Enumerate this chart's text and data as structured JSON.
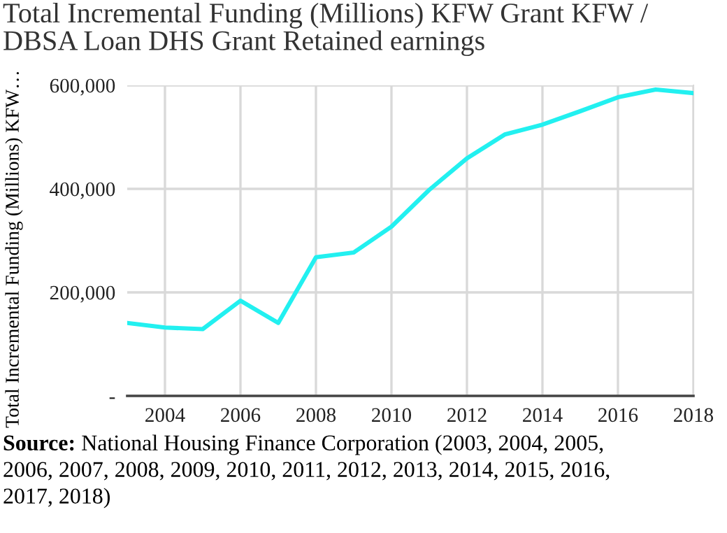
{
  "chart_data": {
    "type": "line",
    "title": "Total Incremental Funding (Millions) KFW Grant KFW /\nDBSA Loan DHS Grant Retained earnings",
    "ylabel": "Total Incremental Funding (Millions) KFW…",
    "x": [
      2003,
      2004,
      2005,
      2006,
      2007,
      2008,
      2009,
      2010,
      2011,
      2012,
      2013,
      2014,
      2015,
      2016,
      2017,
      2018
    ],
    "series": [
      {
        "color": "#22f0f0",
        "values": [
          141000,
          132000,
          129000,
          184000,
          141000,
          268000,
          277000,
          327000,
          398000,
          459000,
          505000,
          524000,
          550000,
          577000,
          592000,
          585000
        ]
      }
    ],
    "xlim": [
      2003,
      2018
    ],
    "xticks": [
      2004,
      2006,
      2008,
      2010,
      2012,
      2014,
      2016,
      2018
    ],
    "ylim": [
      0,
      600000
    ],
    "yticks": [
      {
        "value": 0,
        "label": "-"
      },
      {
        "value": 200000,
        "label": "200,000"
      },
      {
        "value": 400000,
        "label": "400,000"
      },
      {
        "value": 600000,
        "label": "600,000"
      }
    ],
    "grid": true,
    "marker": "none",
    "line_style": "solid",
    "annotations": [
      "Source:",
      "National Housing Finance Corporation (2003, 2004, 2005,\n2006, 2007, 2008, 2009, 2010, 2011, 2012, 2013, 2014, 2015, 2016,\n2017, 2018)"
    ]
  }
}
